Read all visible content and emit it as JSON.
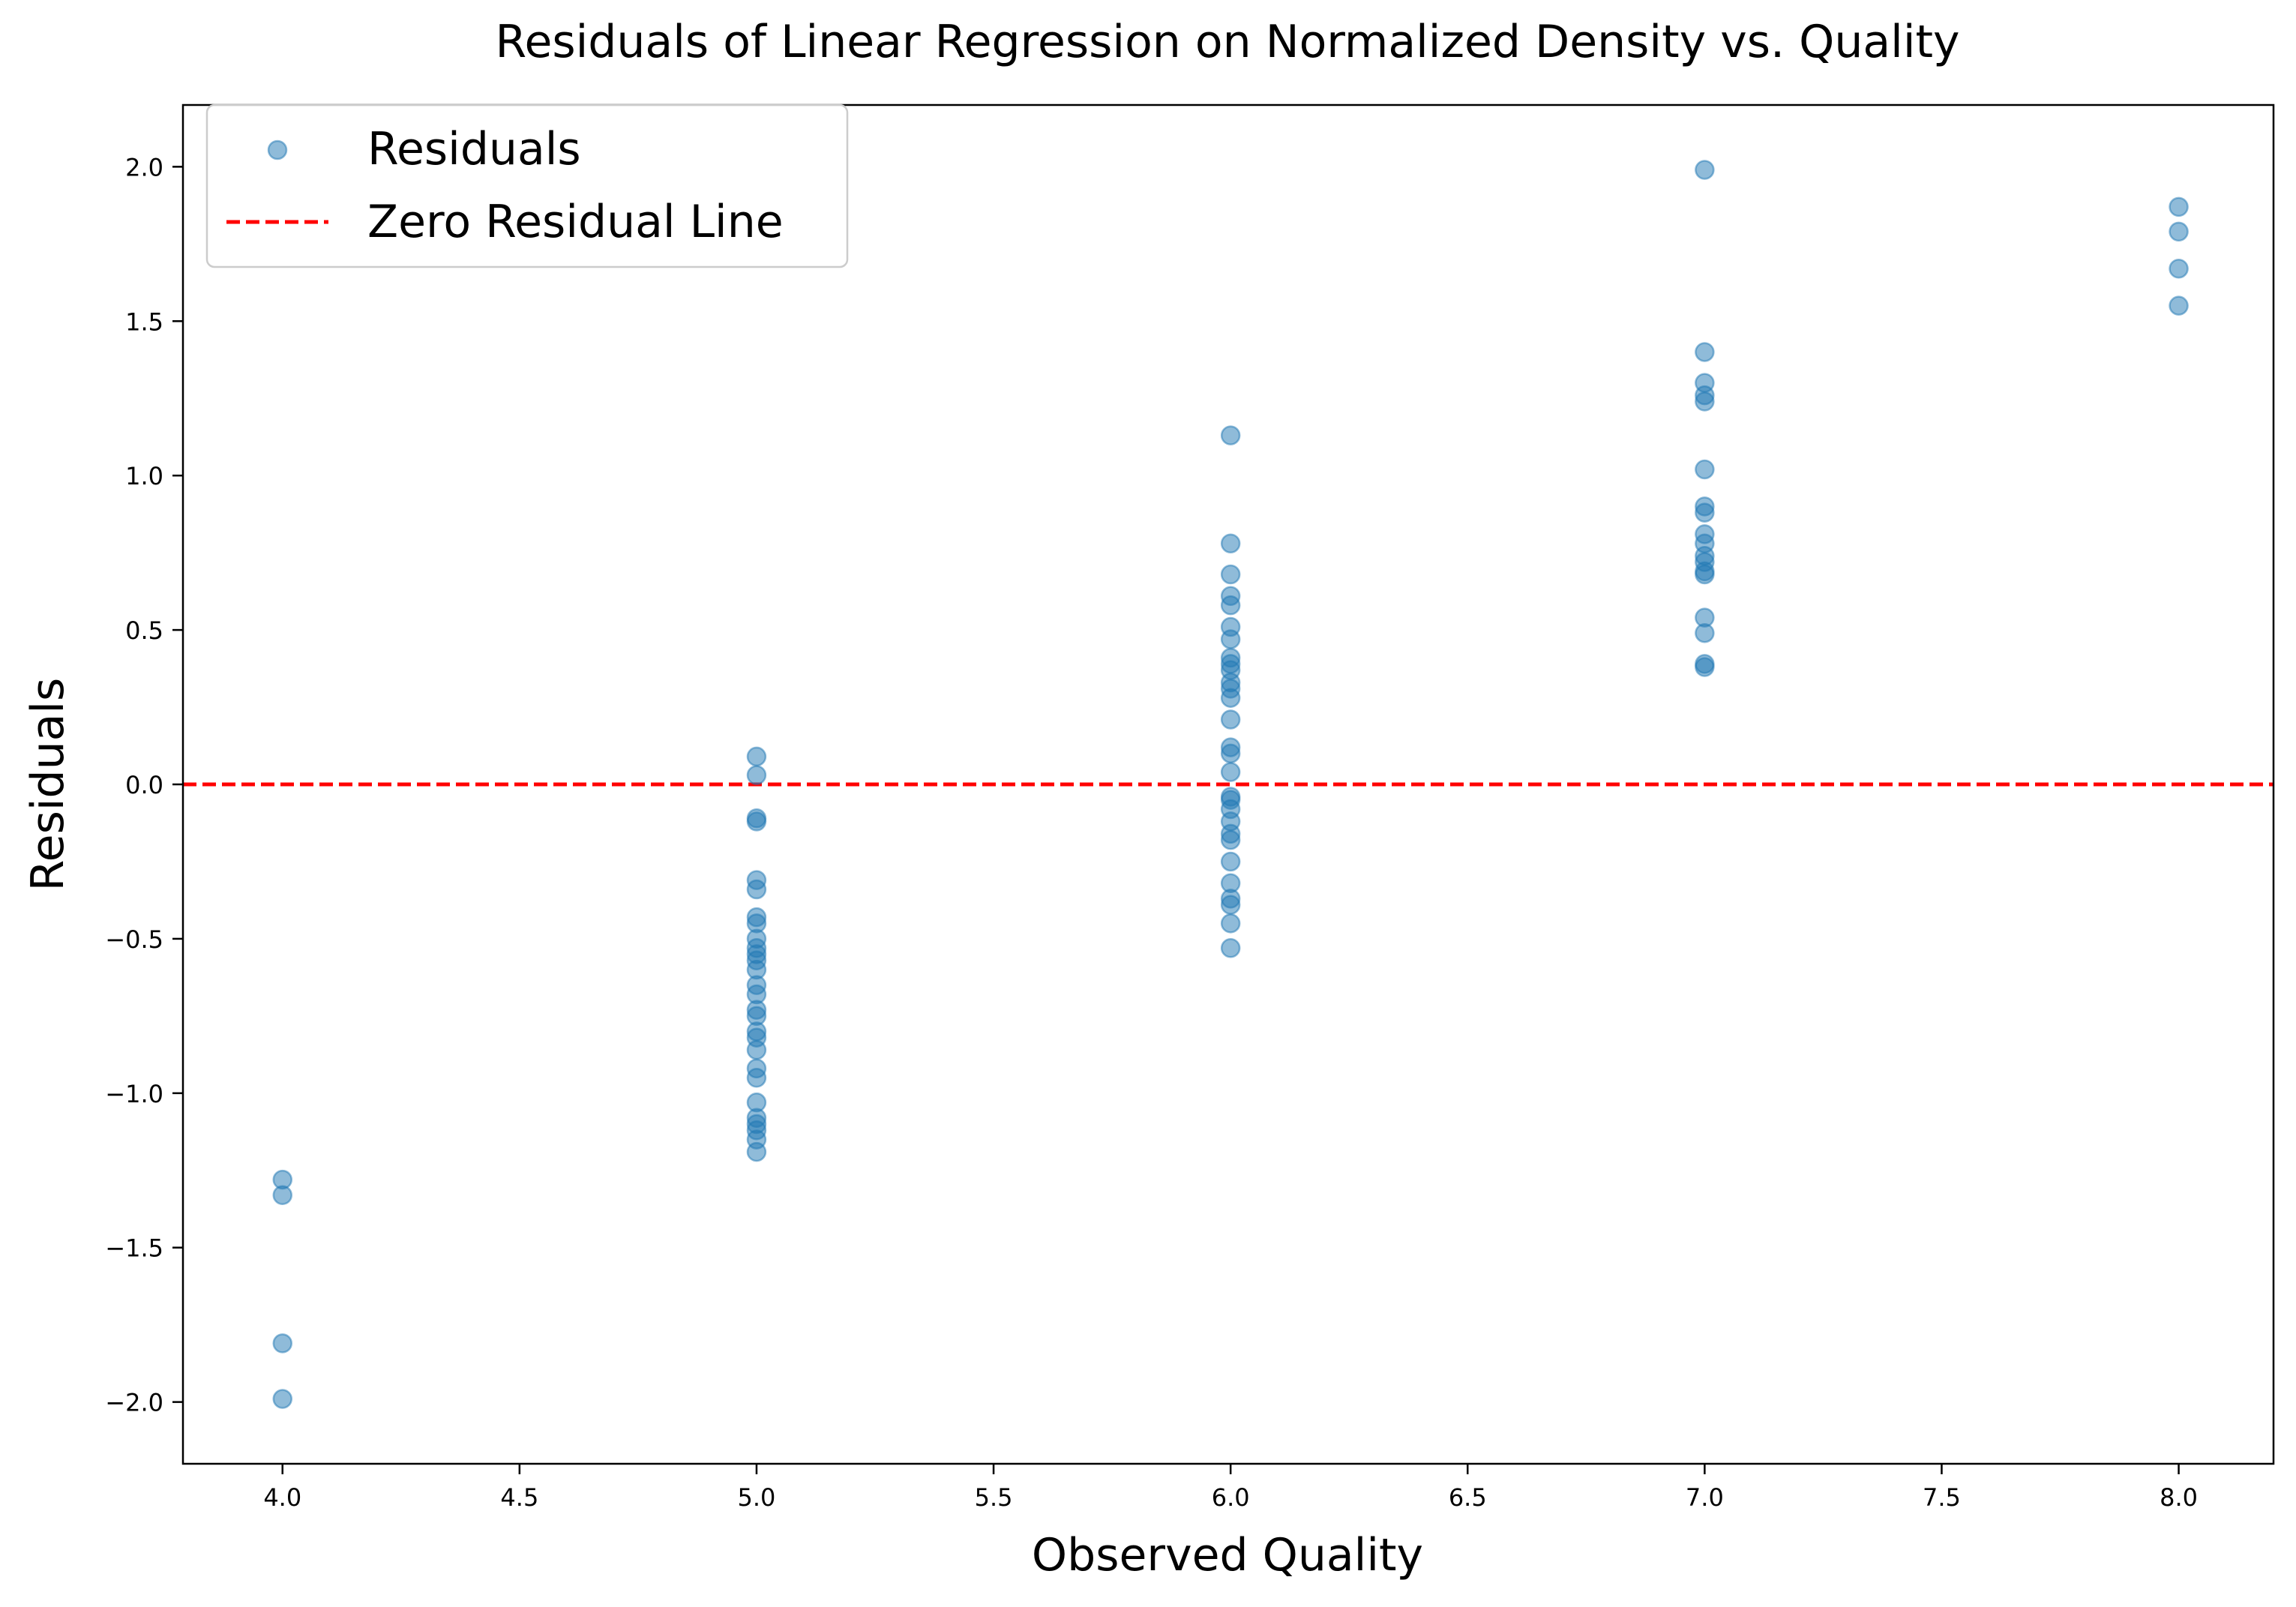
{
  "chart_data": {
    "type": "scatter",
    "title": "Residuals of Linear Regression on Normalized Density vs. Quality",
    "xlabel": "Observed Quality",
    "ylabel": "Residuals",
    "xlim": [
      3.79,
      8.2
    ],
    "ylim": [
      -2.2,
      2.2
    ],
    "xticks": [
      4.0,
      4.5,
      5.0,
      5.5,
      6.0,
      6.5,
      7.0,
      7.5,
      8.0
    ],
    "xtick_labels": [
      "4.0",
      "4.5",
      "5.0",
      "5.5",
      "6.0",
      "6.5",
      "7.0",
      "7.5",
      "8.0"
    ],
    "yticks": [
      -2.0,
      -1.5,
      -1.0,
      -0.5,
      0.0,
      0.5,
      1.0,
      1.5,
      2.0
    ],
    "ytick_labels": [
      "−2.0",
      "−1.5",
      "−1.0",
      "−0.5",
      "0.0",
      "0.5",
      "1.0",
      "1.5",
      "2.0"
    ],
    "grid": false,
    "legend_position": "top-left",
    "series": [
      {
        "name": "Residuals",
        "kind": "scatter",
        "color": "#1f77b4",
        "points": [
          [
            4,
            -1.28
          ],
          [
            4,
            -1.33
          ],
          [
            4,
            -1.81
          ],
          [
            4,
            -1.99
          ],
          [
            5,
            0.09
          ],
          [
            5,
            0.03
          ],
          [
            5,
            -0.11
          ],
          [
            5,
            -0.12
          ],
          [
            5,
            -0.31
          ],
          [
            5,
            -0.34
          ],
          [
            5,
            -0.43
          ],
          [
            5,
            -0.45
          ],
          [
            5,
            -0.5
          ],
          [
            5,
            -0.53
          ],
          [
            5,
            -0.55
          ],
          [
            5,
            -0.57
          ],
          [
            5,
            -0.6
          ],
          [
            5,
            -0.65
          ],
          [
            5,
            -0.68
          ],
          [
            5,
            -0.73
          ],
          [
            5,
            -0.75
          ],
          [
            5,
            -0.8
          ],
          [
            5,
            -0.82
          ],
          [
            5,
            -0.86
          ],
          [
            5,
            -0.92
          ],
          [
            5,
            -0.95
          ],
          [
            5,
            -1.03
          ],
          [
            5,
            -1.08
          ],
          [
            5,
            -1.1
          ],
          [
            5,
            -1.12
          ],
          [
            5,
            -1.15
          ],
          [
            5,
            -1.19
          ],
          [
            6,
            1.13
          ],
          [
            6,
            0.78
          ],
          [
            6,
            0.68
          ],
          [
            6,
            0.61
          ],
          [
            6,
            0.58
          ],
          [
            6,
            0.51
          ],
          [
            6,
            0.47
          ],
          [
            6,
            0.41
          ],
          [
            6,
            0.39
          ],
          [
            6,
            0.37
          ],
          [
            6,
            0.33
          ],
          [
            6,
            0.31
          ],
          [
            6,
            0.28
          ],
          [
            6,
            0.21
          ],
          [
            6,
            0.12
          ],
          [
            6,
            0.1
          ],
          [
            6,
            0.04
          ],
          [
            6,
            -0.04
          ],
          [
            6,
            -0.05
          ],
          [
            6,
            -0.08
          ],
          [
            6,
            -0.12
          ],
          [
            6,
            -0.16
          ],
          [
            6,
            -0.18
          ],
          [
            6,
            -0.25
          ],
          [
            6,
            -0.32
          ],
          [
            6,
            -0.37
          ],
          [
            6,
            -0.39
          ],
          [
            6,
            -0.45
          ],
          [
            6,
            -0.53
          ],
          [
            7,
            1.99
          ],
          [
            7,
            1.4
          ],
          [
            7,
            1.3
          ],
          [
            7,
            1.26
          ],
          [
            7,
            1.24
          ],
          [
            7,
            1.02
          ],
          [
            7,
            0.9
          ],
          [
            7,
            0.88
          ],
          [
            7,
            0.81
          ],
          [
            7,
            0.78
          ],
          [
            7,
            0.74
          ],
          [
            7,
            0.72
          ],
          [
            7,
            0.69
          ],
          [
            7,
            0.68
          ],
          [
            7,
            0.54
          ],
          [
            7,
            0.49
          ],
          [
            7,
            0.39
          ],
          [
            7,
            0.38
          ],
          [
            8,
            1.87
          ],
          [
            8,
            1.79
          ],
          [
            8,
            1.67
          ],
          [
            8,
            1.55
          ]
        ]
      },
      {
        "name": "Zero Residual Line",
        "kind": "hline",
        "y": 0.0,
        "color": "#ff0000",
        "linestyle": "dashed"
      }
    ]
  }
}
